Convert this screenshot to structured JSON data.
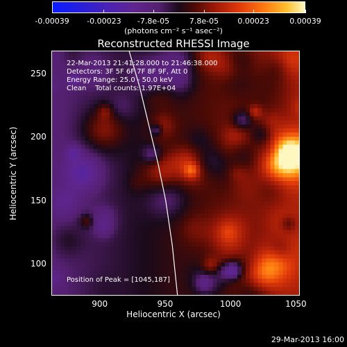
{
  "colorbar": {
    "ticks": [
      "-0.00039",
      "-0.00023",
      "-7.8e-05",
      "7.8e-05",
      "0.00023",
      "0.00039"
    ],
    "units": "(photons cm⁻² s⁻¹ asec⁻²)"
  },
  "chart_data": {
    "type": "heatmap",
    "title": "Reconstructed RHESSI Image",
    "xlabel": "Heliocentric X (arcsec)",
    "ylabel": "Heliocentric Y (arcsec)",
    "xlim": [
      863,
      1053
    ],
    "ylim": [
      75,
      268
    ],
    "xticks": [
      900,
      950,
      1000,
      1050
    ],
    "yticks": [
      100,
      150,
      200,
      250
    ],
    "zlim": [
      -0.00039,
      0.00039
    ],
    "peak": [
      1045,
      187
    ],
    "limb_curve": {
      "x": [
        922,
        930,
        937,
        944,
        950,
        955,
        959
      ],
      "y": [
        268,
        240,
        210,
        180,
        150,
        115,
        75
      ]
    },
    "annotations": [
      "22-Mar-2013 21:41:28.000 to 21:46:38.000",
      "Detectors: 3F 5F 6F 7F 8F 9F, Att 0",
      "Energy Range: 25.0 - 50.0 keV",
      "Clean    Total counts: 1.97E+04",
      "Position of Peak = [1045,187]"
    ]
  },
  "footer": "29-Mar-2013 16:00"
}
